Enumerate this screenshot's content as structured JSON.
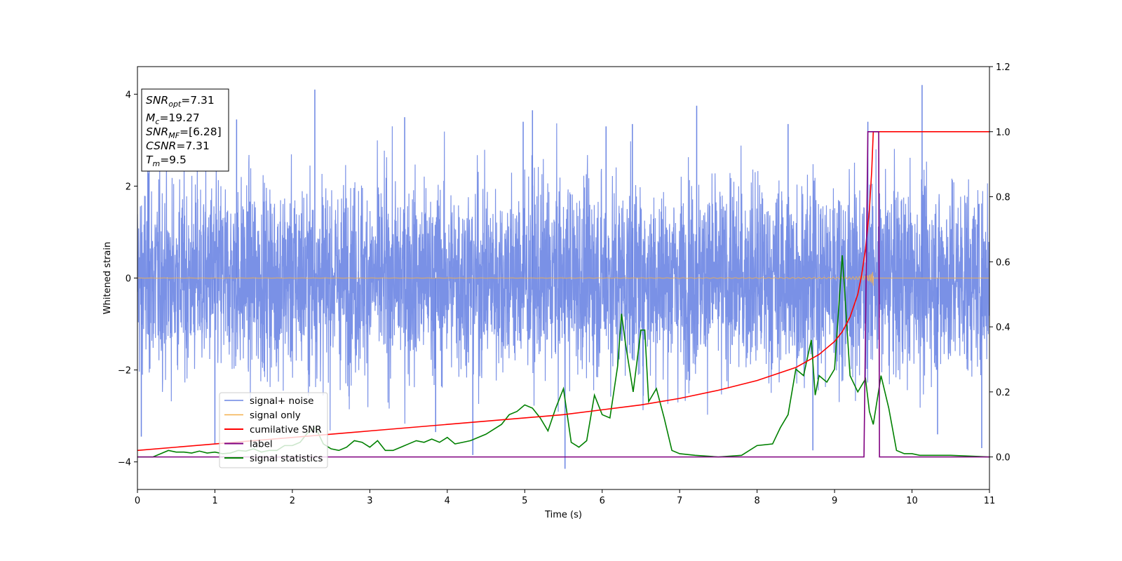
{
  "chart_data": {
    "type": "line",
    "xlabel": "Time (s)",
    "ylabel": "Whitened strain",
    "xlim": [
      0,
      11
    ],
    "ylim": [
      -4.6,
      4.6
    ],
    "y2lim": [
      -0.1,
      1.2
    ],
    "x_ticks": [
      0,
      1,
      2,
      3,
      4,
      5,
      6,
      7,
      8,
      9,
      10,
      11
    ],
    "y_ticks": [
      -4,
      -2,
      0,
      2,
      4
    ],
    "y2_ticks": [
      "0.0",
      "0.2",
      "0.4",
      "0.6",
      "0.8",
      "1.0",
      "1.2"
    ],
    "grid": false,
    "legend_position": "lower-left",
    "textbox_position": "upper-left",
    "colors": {
      "signal_noise": "#6b85e3",
      "signal_only": "#f4b04b",
      "cumulative_snr": "#ff0000",
      "label": "#800080",
      "signal_statistics": "#008000"
    },
    "annotations": [
      {
        "sym": "SNR",
        "sub": "opt",
        "val": "=7.31"
      },
      {
        "sym": "M",
        "sub": "c",
        "val": "=19.27"
      },
      {
        "sym": "SNR",
        "sub": "MF",
        "val": "=[6.28]"
      },
      {
        "sym": "CSNR",
        "sub": "",
        "val": "=7.31"
      },
      {
        "sym": "T",
        "sub": "m",
        "val": "=9.5"
      }
    ],
    "series": [
      {
        "name": "signal+ noise",
        "axis": "left",
        "kind": "noise",
        "envelope_typical": 2.1,
        "min": -4.15,
        "max": 4.2,
        "spikes": [
          {
            "x": 2.29,
            "y": 4.1
          },
          {
            "x": 10.13,
            "y": 4.2
          },
          {
            "x": 5.52,
            "y": -4.15
          },
          {
            "x": 7.22,
            "y": 3.75
          },
          {
            "x": 3.45,
            "y": 3.5
          },
          {
            "x": 1.28,
            "y": 3.45
          },
          {
            "x": 4.98,
            "y": 3.4
          },
          {
            "x": 6.39,
            "y": 3.35
          },
          {
            "x": 9.43,
            "y": 3.4
          },
          {
            "x": 8.72,
            "y": -3.75
          },
          {
            "x": 4.33,
            "y": -3.85
          },
          {
            "x": 0.05,
            "y": -3.45
          },
          {
            "x": 1.0,
            "y": -3.6
          },
          {
            "x": 3.85,
            "y": -3.35
          },
          {
            "x": 10.33,
            "y": -3.4
          },
          {
            "x": 5.1,
            "y": 3.65
          },
          {
            "x": 6.05,
            "y": 3.3
          },
          {
            "x": 8.4,
            "y": 3.35
          },
          {
            "x": 0.15,
            "y": 3.3
          },
          {
            "x": 10.9,
            "y": -3.7
          }
        ]
      },
      {
        "name": "signal only",
        "axis": "left",
        "kind": "chirp",
        "merger_time": 9.5,
        "peak_amplitude": 0.85
      },
      {
        "name": "cumilative SNR",
        "axis": "right",
        "x": [
          0,
          1,
          2,
          3,
          4,
          5,
          5.5,
          6,
          6.5,
          7,
          7.5,
          8,
          8.5,
          8.8,
          9,
          9.1,
          9.2,
          9.3,
          9.35,
          9.4,
          9.45,
          9.48,
          9.5,
          11
        ],
        "y": [
          0.02,
          0.04,
          0.06,
          0.08,
          0.1,
          0.12,
          0.13,
          0.145,
          0.16,
          0.18,
          0.205,
          0.235,
          0.275,
          0.315,
          0.355,
          0.385,
          0.43,
          0.5,
          0.56,
          0.64,
          0.76,
          0.88,
          1.0,
          1.0
        ]
      },
      {
        "name": "label",
        "axis": "right",
        "x": [
          0,
          9.38,
          9.43,
          9.57,
          9.58,
          11
        ],
        "y": [
          0,
          0,
          1,
          1,
          0,
          0
        ]
      },
      {
        "name": "signal statistics",
        "axis": "right",
        "x": [
          0,
          0.2,
          0.3,
          0.4,
          0.5,
          0.6,
          0.7,
          0.8,
          0.9,
          1.0,
          1.1,
          1.2,
          1.3,
          1.4,
          1.5,
          1.6,
          1.7,
          1.8,
          1.9,
          2.0,
          2.1,
          2.2,
          2.3,
          2.4,
          2.5,
          2.6,
          2.7,
          2.8,
          2.9,
          3.0,
          3.1,
          3.2,
          3.3,
          3.4,
          3.5,
          3.6,
          3.7,
          3.8,
          3.9,
          4.0,
          4.1,
          4.2,
          4.3,
          4.4,
          4.5,
          4.6,
          4.7,
          4.8,
          4.9,
          5.0,
          5.1,
          5.2,
          5.3,
          5.4,
          5.5,
          5.6,
          5.7,
          5.8,
          5.9,
          6.0,
          6.1,
          6.2,
          6.25,
          6.3,
          6.4,
          6.5,
          6.55,
          6.6,
          6.7,
          6.8,
          6.9,
          7.0,
          7.2,
          7.5,
          7.8,
          8.0,
          8.2,
          8.3,
          8.4,
          8.5,
          8.6,
          8.7,
          8.75,
          8.8,
          8.9,
          9.0,
          9.1,
          9.12,
          9.2,
          9.3,
          9.4,
          9.45,
          9.5,
          9.6,
          9.7,
          9.8,
          9.9,
          10.0,
          10.1,
          10.5,
          11.0
        ],
        "y": [
          0,
          0,
          0.01,
          0.02,
          0.015,
          0.015,
          0.012,
          0.018,
          0.012,
          0.015,
          0.01,
          0.012,
          0.02,
          0.018,
          0.025,
          0.015,
          0.02,
          0.02,
          0.035,
          0.035,
          0.045,
          0.075,
          0.09,
          0.04,
          0.025,
          0.02,
          0.03,
          0.05,
          0.045,
          0.03,
          0.05,
          0.02,
          0.02,
          0.03,
          0.04,
          0.05,
          0.045,
          0.055,
          0.045,
          0.06,
          0.04,
          0.045,
          0.05,
          0.06,
          0.07,
          0.085,
          0.1,
          0.13,
          0.14,
          0.16,
          0.15,
          0.12,
          0.08,
          0.15,
          0.21,
          0.045,
          0.03,
          0.05,
          0.19,
          0.13,
          0.12,
          0.28,
          0.44,
          0.35,
          0.2,
          0.39,
          0.39,
          0.17,
          0.21,
          0.12,
          0.02,
          0.01,
          0.005,
          0.0,
          0.005,
          0.035,
          0.04,
          0.09,
          0.13,
          0.27,
          0.25,
          0.36,
          0.19,
          0.25,
          0.23,
          0.27,
          0.62,
          0.55,
          0.25,
          0.2,
          0.24,
          0.14,
          0.1,
          0.25,
          0.15,
          0.02,
          0.01,
          0.01,
          0.005,
          0.005,
          0.0
        ]
      }
    ]
  }
}
